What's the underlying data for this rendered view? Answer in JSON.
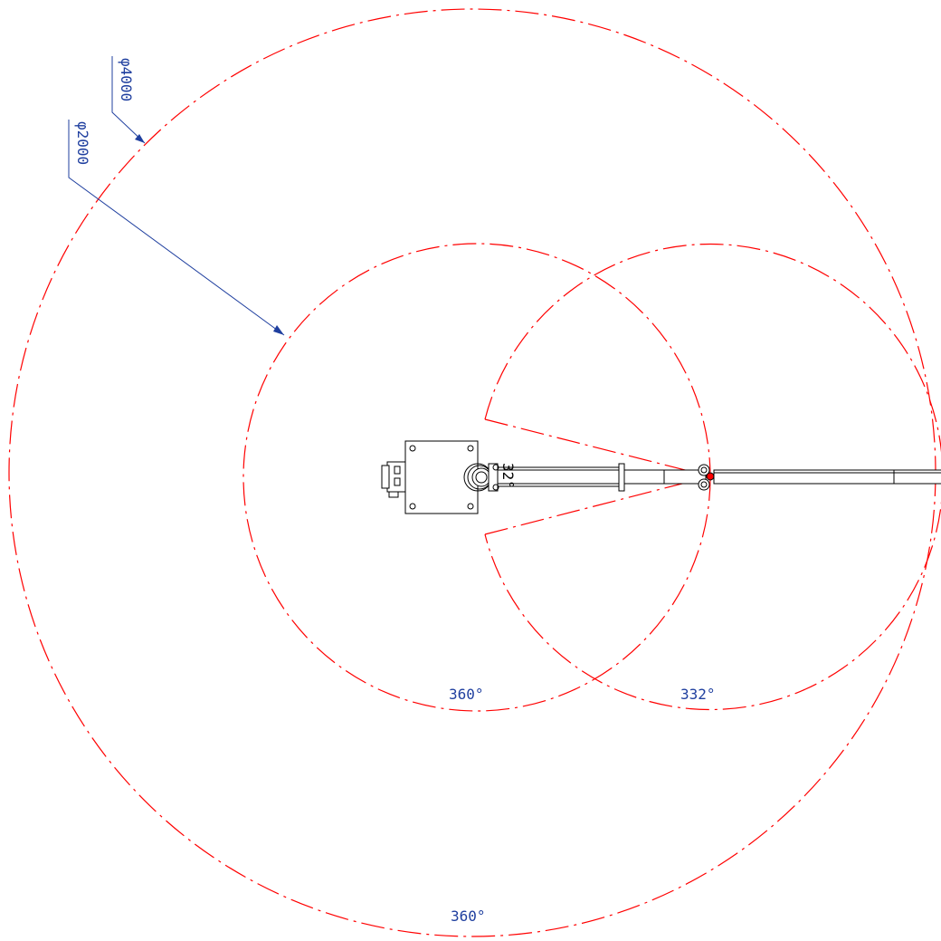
{
  "drawing": {
    "colors": {
      "reach_envelope": "#ff0000",
      "dimension": "#1f3f9f",
      "machine": "#000000",
      "background": "#ffffff"
    },
    "dimensions": {
      "outer_diameter": "φ4000",
      "inner_diameter": "φ2000"
    },
    "angles": {
      "outer_circle": "360°",
      "inner_circle": "360°",
      "swing_arc": "332°",
      "small_label": "32°"
    }
  }
}
